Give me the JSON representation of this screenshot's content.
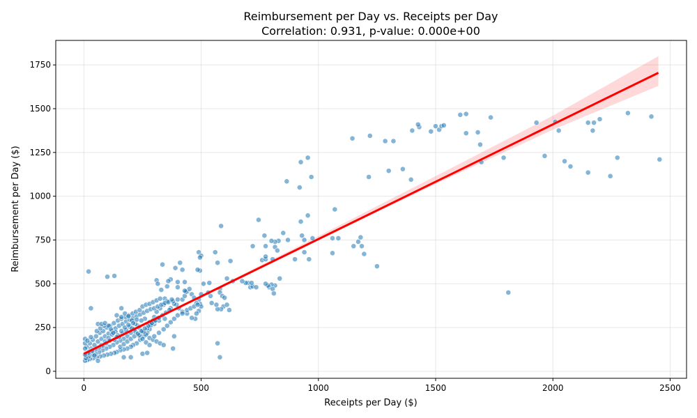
{
  "chart_data": {
    "type": "scatter",
    "title": "Reimbursement per Day vs. Receipts per Day",
    "subtitle": "Correlation: 0.931, p-value: 0.000e+00",
    "xlabel": "Receipts per Day ($)",
    "ylabel": "Reimbursement per Day ($)",
    "xlim": [
      -120,
      2570
    ],
    "ylim": [
      -40,
      1890
    ],
    "xticks": [
      0,
      500,
      1000,
      1500,
      2000,
      2500
    ],
    "yticks": [
      0,
      250,
      500,
      750,
      1000,
      1250,
      1500,
      1750
    ],
    "grid": true,
    "point_color": "#1f77b4",
    "regression": {
      "color": "#ff0000",
      "points": [
        [
          0,
          100
        ],
        [
          2450,
          1705
        ]
      ],
      "ci": {
        "x": [
          0,
          500,
          1000,
          1500,
          2000,
          2450
        ],
        "lower": [
          90,
          423,
          750,
          1070,
          1380,
          1630
        ],
        "upper": [
          112,
          435,
          772,
          1115,
          1460,
          1800
        ]
      }
    },
    "points": [
      [
        1320,
        1315
      ],
      [
        1400,
        1375
      ],
      [
        1430,
        1395
      ],
      [
        1425,
        1410
      ],
      [
        1480,
        1370
      ],
      [
        1500,
        1400
      ],
      [
        1515,
        1380
      ],
      [
        1525,
        1400
      ],
      [
        1535,
        1405
      ],
      [
        1605,
        1465
      ],
      [
        1630,
        1470
      ],
      [
        1630,
        1360
      ],
      [
        1680,
        1365
      ],
      [
        1735,
        1450
      ],
      [
        1690,
        1295
      ],
      [
        1695,
        1195
      ],
      [
        1790,
        1220
      ],
      [
        1930,
        1420
      ],
      [
        2010,
        1425
      ],
      [
        2025,
        1375
      ],
      [
        2150,
        1420
      ],
      [
        2175,
        1420
      ],
      [
        2170,
        1375
      ],
      [
        2200,
        1440
      ],
      [
        2320,
        1475
      ],
      [
        2420,
        1455
      ],
      [
        2455,
        1210
      ],
      [
        2275,
        1220
      ],
      [
        2245,
        1115
      ],
      [
        2150,
        1135
      ],
      [
        2075,
        1170
      ],
      [
        2050,
        1200
      ],
      [
        1965,
        1230
      ],
      [
        1810,
        450
      ],
      [
        1145,
        1330
      ],
      [
        1220,
        1345
      ],
      [
        1285,
        1315
      ],
      [
        1300,
        1145
      ],
      [
        1360,
        1155
      ],
      [
        1395,
        1095
      ],
      [
        1215,
        1110
      ],
      [
        955,
        1220
      ],
      [
        925,
        1195
      ],
      [
        970,
        1110
      ],
      [
        865,
        1085
      ],
      [
        920,
        1050
      ],
      [
        1070,
        925
      ],
      [
        955,
        890
      ],
      [
        925,
        855
      ],
      [
        585,
        830
      ],
      [
        745,
        865
      ],
      [
        1060,
        760
      ],
      [
        1085,
        760
      ],
      [
        975,
        760
      ],
      [
        1180,
        765
      ],
      [
        1170,
        740
      ],
      [
        1185,
        715
      ],
      [
        1150,
        715
      ],
      [
        1195,
        670
      ],
      [
        1060,
        675
      ],
      [
        1250,
        600
      ],
      [
        940,
        750
      ],
      [
        930,
        775
      ],
      [
        850,
        790
      ],
      [
        870,
        750
      ],
      [
        830,
        745
      ],
      [
        815,
        740
      ],
      [
        800,
        745
      ],
      [
        770,
        775
      ],
      [
        775,
        715
      ],
      [
        815,
        710
      ],
      [
        825,
        690
      ],
      [
        805,
        640
      ],
      [
        720,
        715
      ],
      [
        760,
        635
      ],
      [
        775,
        640
      ],
      [
        775,
        655
      ],
      [
        900,
        640
      ],
      [
        960,
        640
      ],
      [
        940,
        680
      ],
      [
        835,
        530
      ],
      [
        815,
        490
      ],
      [
        800,
        495
      ],
      [
        790,
        480
      ],
      [
        785,
        490
      ],
      [
        775,
        500
      ],
      [
        805,
        470
      ],
      [
        810,
        445
      ],
      [
        710,
        480
      ],
      [
        720,
        485
      ],
      [
        735,
        480
      ],
      [
        700,
        505
      ],
      [
        690,
        505
      ],
      [
        675,
        515
      ],
      [
        715,
        505
      ],
      [
        610,
        530
      ],
      [
        635,
        515
      ],
      [
        625,
        630
      ],
      [
        570,
        620
      ],
      [
        560,
        680
      ],
      [
        580,
        470
      ],
      [
        580,
        450
      ],
      [
        590,
        430
      ],
      [
        600,
        420
      ],
      [
        595,
        370
      ],
      [
        610,
        380
      ],
      [
        620,
        350
      ],
      [
        585,
        355
      ],
      [
        570,
        355
      ],
      [
        565,
        380
      ],
      [
        545,
        390
      ],
      [
        540,
        430
      ],
      [
        530,
        450
      ],
      [
        535,
        505
      ],
      [
        510,
        500
      ],
      [
        500,
        440
      ],
      [
        495,
        385
      ],
      [
        500,
        370
      ],
      [
        490,
        345
      ],
      [
        480,
        330
      ],
      [
        475,
        300
      ],
      [
        460,
        305
      ],
      [
        440,
        330
      ],
      [
        420,
        340
      ],
      [
        405,
        360
      ],
      [
        395,
        380
      ],
      [
        385,
        385
      ],
      [
        370,
        360
      ],
      [
        380,
        400
      ],
      [
        400,
        410
      ],
      [
        420,
        410
      ],
      [
        430,
        430
      ],
      [
        440,
        455
      ],
      [
        450,
        470
      ],
      [
        460,
        440
      ],
      [
        470,
        420
      ],
      [
        490,
        410
      ],
      [
        480,
        390
      ],
      [
        495,
        575
      ],
      [
        485,
        580
      ],
      [
        490,
        680
      ],
      [
        500,
        660
      ],
      [
        495,
        650
      ],
      [
        435,
        455
      ],
      [
        430,
        460
      ],
      [
        400,
        480
      ],
      [
        390,
        590
      ],
      [
        410,
        620
      ],
      [
        420,
        580
      ],
      [
        400,
        510
      ],
      [
        430,
        510
      ],
      [
        370,
        525
      ],
      [
        360,
        515
      ],
      [
        355,
        485
      ],
      [
        335,
        610
      ],
      [
        310,
        520
      ],
      [
        315,
        500
      ],
      [
        330,
        465
      ],
      [
        345,
        415
      ],
      [
        355,
        400
      ],
      [
        340,
        380
      ],
      [
        325,
        360
      ],
      [
        310,
        340
      ],
      [
        300,
        310
      ],
      [
        295,
        290
      ],
      [
        285,
        260
      ],
      [
        280,
        240
      ],
      [
        270,
        220
      ],
      [
        255,
        200
      ],
      [
        240,
        180
      ],
      [
        225,
        160
      ],
      [
        210,
        150
      ],
      [
        200,
        140
      ],
      [
        185,
        130
      ],
      [
        170,
        125
      ],
      [
        155,
        120
      ],
      [
        140,
        110
      ],
      [
        130,
        105
      ],
      [
        115,
        100
      ],
      [
        100,
        95
      ],
      [
        85,
        90
      ],
      [
        70,
        85
      ],
      [
        55,
        80
      ],
      [
        40,
        75
      ],
      [
        25,
        70
      ],
      [
        15,
        65
      ],
      [
        5,
        60
      ],
      [
        10,
        90
      ],
      [
        20,
        110
      ],
      [
        30,
        130
      ],
      [
        45,
        150
      ],
      [
        60,
        170
      ],
      [
        75,
        185
      ],
      [
        90,
        200
      ],
      [
        105,
        215
      ],
      [
        120,
        230
      ],
      [
        135,
        245
      ],
      [
        150,
        260
      ],
      [
        165,
        270
      ],
      [
        180,
        285
      ],
      [
        195,
        295
      ],
      [
        210,
        305
      ],
      [
        225,
        315
      ],
      [
        240,
        325
      ],
      [
        255,
        335
      ],
      [
        270,
        345
      ],
      [
        285,
        355
      ],
      [
        300,
        360
      ],
      [
        315,
        370
      ],
      [
        330,
        380
      ],
      [
        345,
        390
      ],
      [
        360,
        395
      ],
      [
        375,
        410
      ],
      [
        345,
        300
      ],
      [
        320,
        290
      ],
      [
        300,
        270
      ],
      [
        280,
        280
      ],
      [
        260,
        300
      ],
      [
        245,
        290
      ],
      [
        230,
        260
      ],
      [
        215,
        240
      ],
      [
        200,
        220
      ],
      [
        185,
        200
      ],
      [
        170,
        185
      ],
      [
        155,
        175
      ],
      [
        140,
        165
      ],
      [
        125,
        150
      ],
      [
        110,
        140
      ],
      [
        95,
        130
      ],
      [
        80,
        120
      ],
      [
        65,
        110
      ],
      [
        50,
        100
      ],
      [
        35,
        95
      ],
      [
        20,
        85
      ],
      [
        8,
        75
      ],
      [
        12,
        140
      ],
      [
        25,
        160
      ],
      [
        38,
        180
      ],
      [
        52,
        200
      ],
      [
        68,
        220
      ],
      [
        82,
        230
      ],
      [
        97,
        250
      ],
      [
        112,
        260
      ],
      [
        128,
        275
      ],
      [
        145,
        290
      ],
      [
        160,
        300
      ],
      [
        178,
        310
      ],
      [
        192,
        320
      ],
      [
        208,
        330
      ],
      [
        222,
        340
      ],
      [
        238,
        350
      ],
      [
        250,
        370
      ],
      [
        265,
        380
      ],
      [
        280,
        385
      ],
      [
        295,
        395
      ],
      [
        310,
        405
      ],
      [
        325,
        415
      ],
      [
        140,
        320
      ],
      [
        160,
        310
      ],
      [
        175,
        330
      ],
      [
        190,
        315
      ],
      [
        205,
        290
      ],
      [
        220,
        270
      ],
      [
        235,
        250
      ],
      [
        250,
        230
      ],
      [
        265,
        210
      ],
      [
        280,
        190
      ],
      [
        295,
        180
      ],
      [
        310,
        170
      ],
      [
        325,
        160
      ],
      [
        340,
        150
      ],
      [
        300,
        200
      ],
      [
        320,
        220
      ],
      [
        340,
        240
      ],
      [
        355,
        260
      ],
      [
        370,
        280
      ],
      [
        385,
        300
      ],
      [
        400,
        320
      ],
      [
        420,
        330
      ],
      [
        440,
        350
      ],
      [
        455,
        360
      ],
      [
        470,
        370
      ],
      [
        485,
        380
      ],
      [
        160,
        360
      ],
      [
        170,
        80
      ],
      [
        200,
        80
      ],
      [
        250,
        100
      ],
      [
        270,
        105
      ],
      [
        380,
        130
      ],
      [
        385,
        200
      ],
      [
        570,
        160
      ],
      [
        580,
        80
      ],
      [
        20,
        570
      ],
      [
        30,
        360
      ],
      [
        100,
        540
      ],
      [
        130,
        545
      ],
      [
        60,
        60
      ],
      [
        45,
        90
      ],
      [
        35,
        120
      ],
      [
        75,
        150
      ],
      [
        90,
        170
      ],
      [
        105,
        190
      ],
      [
        120,
        210
      ],
      [
        135,
        225
      ],
      [
        150,
        195
      ],
      [
        165,
        215
      ],
      [
        180,
        235
      ],
      [
        195,
        255
      ],
      [
        210,
        275
      ],
      [
        225,
        295
      ],
      [
        240,
        205
      ],
      [
        255,
        225
      ],
      [
        270,
        245
      ],
      [
        285,
        265
      ],
      [
        300,
        285
      ],
      [
        315,
        305
      ],
      [
        130,
        180
      ],
      [
        145,
        205
      ],
      [
        160,
        230
      ],
      [
        175,
        250
      ],
      [
        190,
        265
      ],
      [
        205,
        245
      ],
      [
        220,
        225
      ],
      [
        235,
        205
      ],
      [
        250,
        185
      ],
      [
        265,
        165
      ],
      [
        280,
        150
      ],
      [
        110,
        175
      ],
      [
        95,
        160
      ],
      [
        80,
        145
      ],
      [
        65,
        135
      ],
      [
        50,
        125
      ],
      [
        35,
        115
      ],
      [
        20,
        105
      ],
      [
        5,
        95
      ],
      [
        5,
        130
      ],
      [
        5,
        160
      ],
      [
        5,
        185
      ],
      [
        15,
        175
      ],
      [
        30,
        195
      ],
      [
        55,
        230
      ],
      [
        70,
        245
      ],
      [
        85,
        260
      ],
      [
        60,
        270
      ],
      [
        75,
        270
      ],
      [
        90,
        275
      ],
      [
        105,
        260
      ],
      [
        115,
        240
      ],
      [
        125,
        220
      ],
      [
        140,
        195
      ],
      [
        155,
        140
      ],
      [
        170,
        155
      ],
      [
        185,
        170
      ],
      [
        200,
        185
      ],
      [
        215,
        200
      ],
      [
        230,
        215
      ],
      [
        245,
        230
      ],
      [
        260,
        245
      ],
      [
        275,
        260
      ],
      [
        290,
        275
      ],
      [
        305,
        290
      ],
      [
        320,
        305
      ],
      [
        335,
        320
      ],
      [
        350,
        335
      ],
      [
        365,
        350
      ]
    ]
  }
}
